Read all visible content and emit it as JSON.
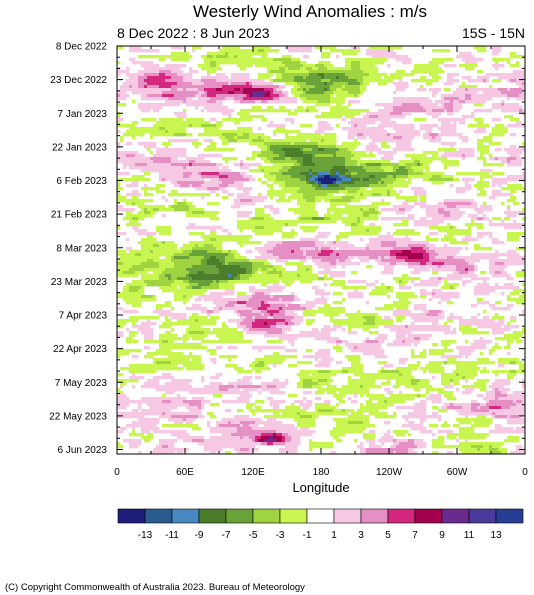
{
  "chart_data": {
    "type": "heatmap",
    "title": "Westerly Wind Anomalies : m/s",
    "date_range": "8 Dec 2022 : 8 Jun 2023",
    "region": "15S - 15N",
    "xlabel": "Longitude",
    "ylabel": "",
    "x_ticks": [
      "0",
      "60E",
      "120E",
      "180",
      "120W",
      "60W",
      "0"
    ],
    "x_tick_values": [
      0,
      60,
      120,
      180,
      240,
      300,
      360
    ],
    "xlim": [
      0,
      360
    ],
    "y_ticks": [
      "8 Dec 2022",
      "23 Dec 2022",
      "7 Jan 2023",
      "22 Jan 2023",
      "6 Feb 2023",
      "21 Feb 2023",
      "8 Mar 2023",
      "23 Mar 2023",
      "7 Apr 2023",
      "22 Apr 2023",
      "7 May 2023",
      "22 May 2023",
      "6 Jun 2023"
    ],
    "y_tick_days": [
      0,
      15,
      30,
      45,
      60,
      75,
      90,
      105,
      120,
      135,
      150,
      165,
      180
    ],
    "ylim_days": [
      0,
      182
    ],
    "y_reversed": true,
    "grid": false,
    "colorbar": {
      "orientation": "horizontal",
      "placement": "bottom",
      "labels": [
        "-13",
        "-11",
        "-9",
        "-7",
        "-5",
        "-3",
        "-1",
        "1",
        "3",
        "5",
        "7",
        "9",
        "11",
        "13"
      ],
      "levels": [
        -13,
        -11,
        -9,
        -7,
        -5,
        -3,
        -1,
        1,
        3,
        5,
        7,
        9,
        11,
        13
      ],
      "colors": [
        "#1c1e7a",
        "#2b5c8f",
        "#4a88c2",
        "#4c7d2a",
        "#6aa23a",
        "#9fd33f",
        "#c8f54f",
        "#ffffff",
        "#f7c8e3",
        "#e58fc4",
        "#d4287f",
        "#a3004d",
        "#6a2a8e",
        "#4a3a9c",
        "#283e94"
      ]
    },
    "features": [
      {
        "lon": 145,
        "day": 8,
        "value": -1.5,
        "lon_spread": 70,
        "day_spread": 4
      },
      {
        "lon": 175,
        "day": 15,
        "value": -6,
        "lon_spread": 28,
        "day_spread": 4
      },
      {
        "lon": 180,
        "day": 24,
        "value": -2.5,
        "lon_spread": 25,
        "day_spread": 5
      },
      {
        "lon": 70,
        "day": 20,
        "value": 3,
        "lon_spread": 60,
        "day_spread": 5
      },
      {
        "lon": 110,
        "day": 20,
        "value": 5.5,
        "lon_spread": 18,
        "day_spread": 3
      },
      {
        "lon": 135,
        "day": 22,
        "value": 5.5,
        "lon_spread": 12,
        "day_spread": 3
      },
      {
        "lon": 260,
        "day": 28,
        "value": 2,
        "lon_spread": 45,
        "day_spread": 3
      },
      {
        "lon": 70,
        "day": 28,
        "value": -1.5,
        "lon_spread": 20,
        "day_spread": 3
      },
      {
        "lon": 30,
        "day": 15,
        "value": 2.2,
        "lon_spread": 30,
        "day_spread": 4
      },
      {
        "lon": 60,
        "day": 38,
        "value": -1.5,
        "lon_spread": 50,
        "day_spread": 3
      },
      {
        "lon": 230,
        "day": 38,
        "value": 2,
        "lon_spread": 40,
        "day_spread": 3
      },
      {
        "lon": 170,
        "day": 47,
        "value": -6.5,
        "lon_spread": 32,
        "day_spread": 4
      },
      {
        "lon": 185,
        "day": 58,
        "value": -7.5,
        "lon_spread": 40,
        "day_spread": 5
      },
      {
        "lon": 185,
        "day": 60,
        "value": -9,
        "lon_spread": 10,
        "day_spread": 1.5
      },
      {
        "lon": 255,
        "day": 55,
        "value": -2.5,
        "lon_spread": 30,
        "day_spread": 4
      },
      {
        "lon": 95,
        "day": 58,
        "value": 4.5,
        "lon_spread": 28,
        "day_spread": 5
      },
      {
        "lon": 240,
        "day": 48,
        "value": 2,
        "lon_spread": 40,
        "day_spread": 3
      },
      {
        "lon": 30,
        "day": 52,
        "value": 2,
        "lon_spread": 30,
        "day_spread": 3
      },
      {
        "lon": 40,
        "day": 72,
        "value": -2,
        "lon_spread": 40,
        "day_spread": 4
      },
      {
        "lon": 180,
        "day": 75,
        "value": -2.5,
        "lon_spread": 60,
        "day_spread": 5
      },
      {
        "lon": 300,
        "day": 73,
        "value": 2.5,
        "lon_spread": 45,
        "day_spread": 3
      },
      {
        "lon": 120,
        "day": 72,
        "value": 2.2,
        "lon_spread": 25,
        "day_spread": 3
      },
      {
        "lon": 90,
        "day": 96,
        "value": -6,
        "lon_spread": 45,
        "day_spread": 6
      },
      {
        "lon": 80,
        "day": 103,
        "value": -5,
        "lon_spread": 25,
        "day_spread": 3
      },
      {
        "lon": 140,
        "day": 91,
        "value": 5,
        "lon_spread": 28,
        "day_spread": 3
      },
      {
        "lon": 200,
        "day": 92,
        "value": 3.5,
        "lon_spread": 50,
        "day_spread": 3
      },
      {
        "lon": 262,
        "day": 94,
        "value": 6,
        "lon_spread": 18,
        "day_spread": 3
      },
      {
        "lon": 305,
        "day": 98,
        "value": 2.2,
        "lon_spread": 30,
        "day_spread": 3
      },
      {
        "lon": 30,
        "day": 110,
        "value": -2,
        "lon_spread": 30,
        "day_spread": 4
      },
      {
        "lon": 140,
        "day": 118,
        "value": 4,
        "lon_spread": 35,
        "day_spread": 7
      },
      {
        "lon": 125,
        "day": 124,
        "value": 6,
        "lon_spread": 15,
        "day_spread": 3
      },
      {
        "lon": 190,
        "day": 120,
        "value": -4,
        "lon_spread": 35,
        "day_spread": 4
      },
      {
        "lon": 85,
        "day": 128,
        "value": -2.5,
        "lon_spread": 30,
        "day_spread": 4
      },
      {
        "lon": 285,
        "day": 120,
        "value": 2,
        "lon_spread": 35,
        "day_spread": 3
      },
      {
        "lon": 220,
        "day": 130,
        "value": 2,
        "lon_spread": 40,
        "day_spread": 3
      },
      {
        "lon": 50,
        "day": 140,
        "value": -2,
        "lon_spread": 40,
        "day_spread": 4
      },
      {
        "lon": 210,
        "day": 148,
        "value": -2,
        "lon_spread": 60,
        "day_spread": 5
      },
      {
        "lon": 320,
        "day": 145,
        "value": -1.5,
        "lon_spread": 25,
        "day_spread": 3
      },
      {
        "lon": 90,
        "day": 152,
        "value": 2.5,
        "lon_spread": 40,
        "day_spread": 4
      },
      {
        "lon": 30,
        "day": 162,
        "value": 2,
        "lon_spread": 40,
        "day_spread": 4
      },
      {
        "lon": 330,
        "day": 160,
        "value": 2,
        "lon_spread": 35,
        "day_spread": 4
      },
      {
        "lon": 180,
        "day": 166,
        "value": -2,
        "lon_spread": 50,
        "day_spread": 5
      },
      {
        "lon": 130,
        "day": 172,
        "value": 4.5,
        "lon_spread": 28,
        "day_spread": 4
      },
      {
        "lon": 135,
        "day": 175,
        "value": 6,
        "lon_spread": 10,
        "day_spread": 2
      },
      {
        "lon": 240,
        "day": 180,
        "value": 3,
        "lon_spread": 30,
        "day_spread": 3
      },
      {
        "lon": 320,
        "day": 178,
        "value": -2,
        "lon_spread": 30,
        "day_spread": 3
      },
      {
        "lon": 60,
        "day": 178,
        "value": 2,
        "lon_spread": 40,
        "day_spread": 3
      }
    ]
  },
  "copyright": "(C) Copyright Commonwealth of Australia 2023. Bureau of Meteorology"
}
